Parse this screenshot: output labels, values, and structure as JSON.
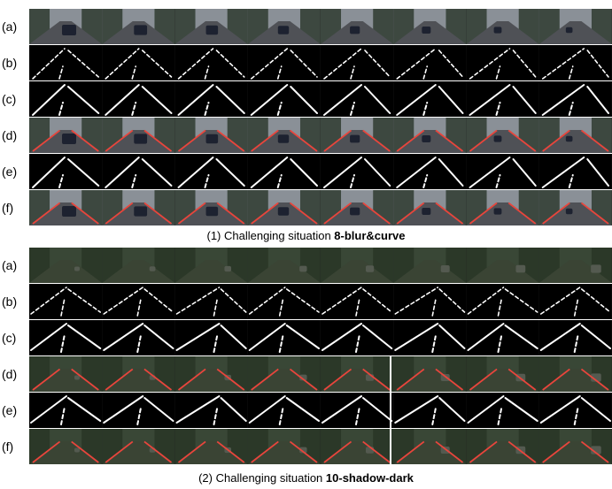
{
  "blocks": [
    {
      "caption_prefix": "(1) Challenging situation ",
      "caption_bold": "8-blur&curve",
      "rows": [
        {
          "label": "(a)",
          "kind": "road-photo"
        },
        {
          "label": "(b)",
          "kind": "lane-mask"
        },
        {
          "label": "(c)",
          "kind": "lane-mask"
        },
        {
          "label": "(d)",
          "kind": "road-overlay"
        },
        {
          "label": "(e)",
          "kind": "lane-mask"
        },
        {
          "label": "(f)",
          "kind": "road-overlay"
        }
      ],
      "palette": {
        "sky": "#8a9097",
        "road": "#4f5156",
        "tree": "#3d4840",
        "car": "#1d2230"
      }
    },
    {
      "caption_prefix": "(2) Challenging situation ",
      "caption_bold": "10-shadow-dark",
      "rows": [
        {
          "label": "(a)",
          "kind": "road-photo"
        },
        {
          "label": "(b)",
          "kind": "lane-mask"
        },
        {
          "label": "(c)",
          "kind": "lane-mask"
        },
        {
          "label": "(d)",
          "kind": "road-overlay"
        },
        {
          "label": "(e)",
          "kind": "lane-mask"
        },
        {
          "label": "(f)",
          "kind": "road-overlay"
        }
      ],
      "palette": {
        "sky": "#394736",
        "road": "#3a4434",
        "tree": "#2b3828",
        "car": "#545a50"
      }
    }
  ],
  "colors": {
    "lane_overlay": "#e8453c",
    "lane_mask": "#ffffff"
  }
}
